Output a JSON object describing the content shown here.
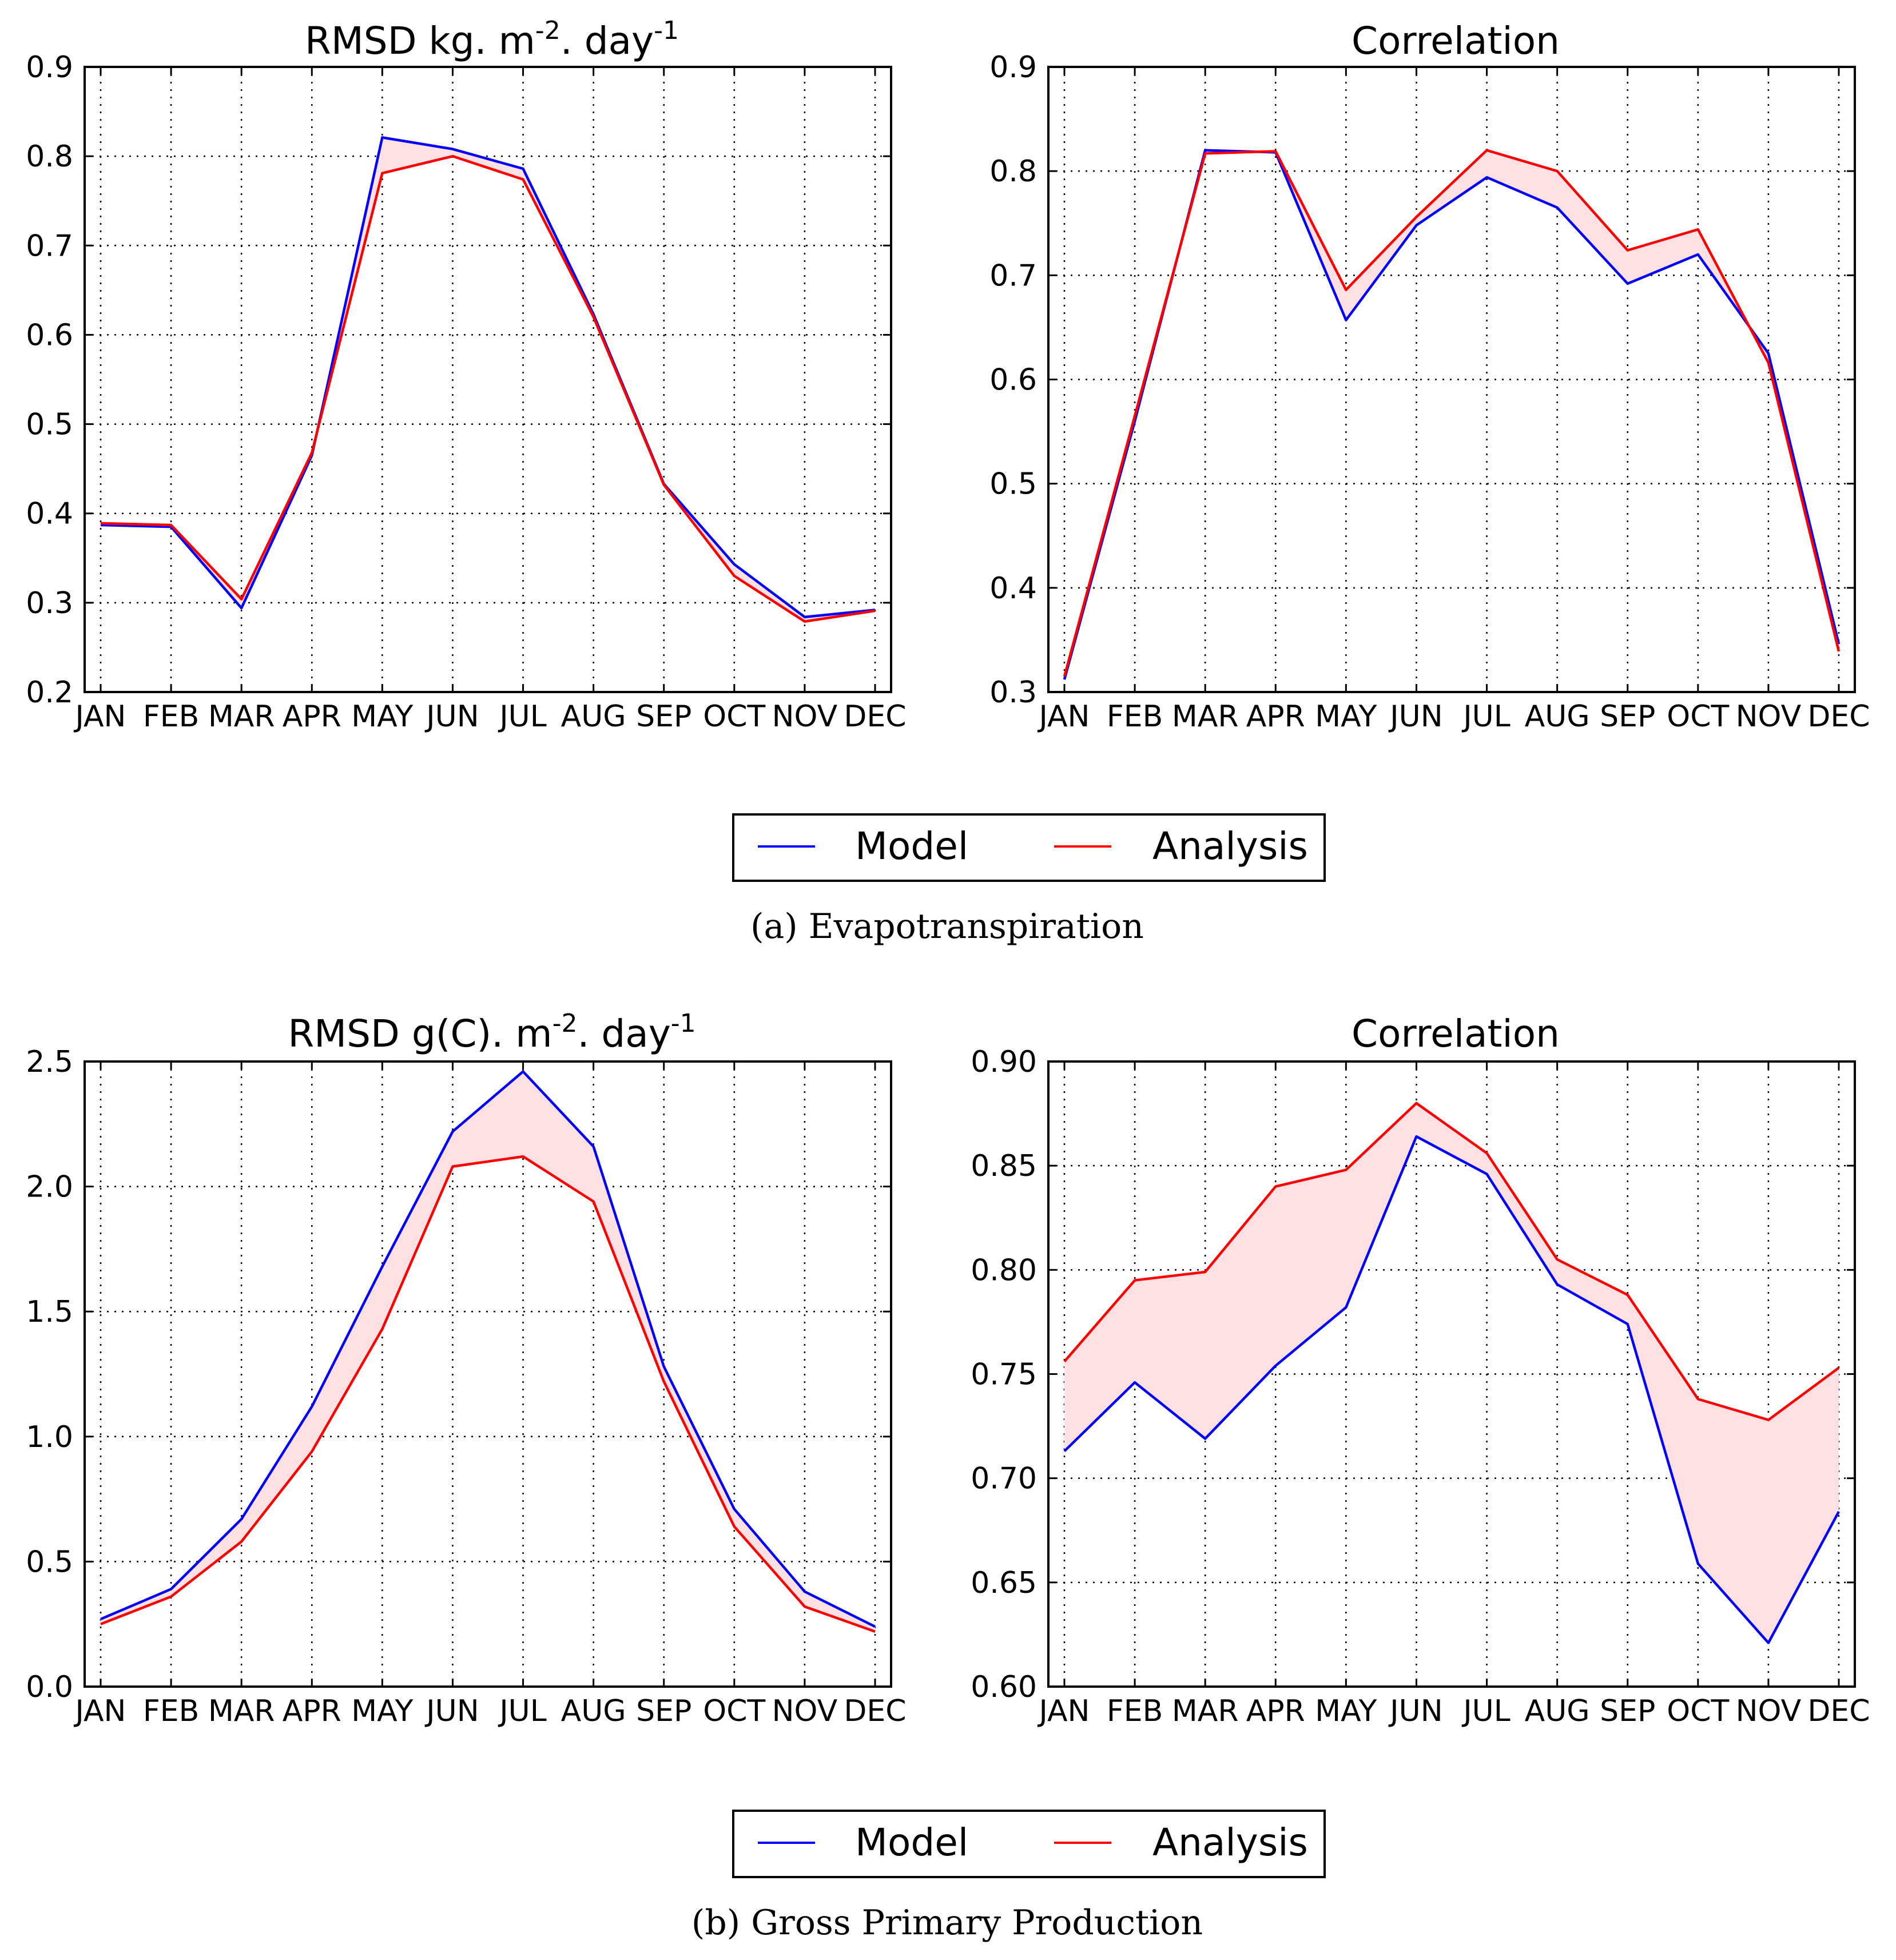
{
  "series_names": [
    "Model",
    "Analysis"
  ],
  "colors": {
    "model": "#0000ff",
    "analysis": "#ff0000",
    "fill": "#ffe0e3"
  },
  "legends": [
    {
      "model_label": "Model",
      "analysis_label": "Analysis"
    },
    {
      "model_label": "Model",
      "analysis_label": "Analysis"
    }
  ],
  "captions": {
    "a": "(a)  Evapotranspiration",
    "b": "(b)  Gross Primary Production"
  },
  "chart_data": [
    {
      "type": "line",
      "title_main": "RMSD kg. m",
      "title_sup1": "-2",
      "title_mid": ". day",
      "title_sup2": "-1",
      "categories": [
        "JAN",
        "FEB",
        "MAR",
        "APR",
        "MAY",
        "JUN",
        "JUL",
        "AUG",
        "SEP",
        "OCT",
        "NOV",
        "DEC"
      ],
      "ylim": [
        0.2,
        0.9
      ],
      "yticks": [
        0.2,
        0.3,
        0.4,
        0.5,
        0.6,
        0.7,
        0.8,
        0.9
      ],
      "ytick_labels": [
        "0.2",
        "0.3",
        "0.4",
        "0.5",
        "0.6",
        "0.7",
        "0.8",
        "0.9"
      ],
      "grid": true,
      "series": [
        {
          "name": "Model",
          "values": [
            0.387,
            0.385,
            0.294,
            0.465,
            0.821,
            0.808,
            0.786,
            0.623,
            0.433,
            0.343,
            0.284,
            0.292
          ]
        },
        {
          "name": "Analysis",
          "values": [
            0.389,
            0.387,
            0.304,
            0.468,
            0.781,
            0.8,
            0.774,
            0.62,
            0.432,
            0.33,
            0.279,
            0.291
          ]
        }
      ]
    },
    {
      "type": "line",
      "title_main": "Correlation",
      "categories": [
        "JAN",
        "FEB",
        "MAR",
        "APR",
        "MAY",
        "JUN",
        "JUL",
        "AUG",
        "SEP",
        "OCT",
        "NOV",
        "DEC"
      ],
      "ylim": [
        0.3,
        0.9
      ],
      "yticks": [
        0.3,
        0.4,
        0.5,
        0.6,
        0.7,
        0.8,
        0.9
      ],
      "ytick_labels": [
        "0.3",
        "0.4",
        "0.5",
        "0.6",
        "0.7",
        "0.8",
        "0.9"
      ],
      "grid": true,
      "series": [
        {
          "name": "Model",
          "values": [
            0.312,
            0.56,
            0.82,
            0.818,
            0.657,
            0.748,
            0.794,
            0.765,
            0.692,
            0.72,
            0.625,
            0.346
          ]
        },
        {
          "name": "Analysis",
          "values": [
            0.315,
            0.565,
            0.817,
            0.819,
            0.686,
            0.756,
            0.82,
            0.8,
            0.724,
            0.744,
            0.616,
            0.339
          ]
        }
      ]
    },
    {
      "type": "line",
      "title_main": "RMSD g(C). m",
      "title_sup1": "-2",
      "title_mid": ". day",
      "title_sup2": "-1",
      "categories": [
        "JAN",
        "FEB",
        "MAR",
        "APR",
        "MAY",
        "JUN",
        "JUL",
        "AUG",
        "SEP",
        "OCT",
        "NOV",
        "DEC"
      ],
      "ylim": [
        0.0,
        2.5
      ],
      "yticks": [
        0.0,
        0.5,
        1.0,
        1.5,
        2.0,
        2.5
      ],
      "ytick_labels": [
        "0.0",
        "0.5",
        "1.0",
        "1.5",
        "2.0",
        "2.5"
      ],
      "grid": true,
      "series": [
        {
          "name": "Model",
          "values": [
            0.27,
            0.39,
            0.67,
            1.12,
            1.68,
            2.22,
            2.46,
            2.16,
            1.28,
            0.71,
            0.38,
            0.24
          ]
        },
        {
          "name": "Analysis",
          "values": [
            0.25,
            0.36,
            0.58,
            0.94,
            1.43,
            2.08,
            2.12,
            1.94,
            1.22,
            0.64,
            0.32,
            0.22
          ]
        }
      ]
    },
    {
      "type": "line",
      "title_main": "Correlation",
      "categories": [
        "JAN",
        "FEB",
        "MAR",
        "APR",
        "MAY",
        "JUN",
        "JUL",
        "AUG",
        "SEP",
        "OCT",
        "NOV",
        "DEC"
      ],
      "ylim": [
        0.6,
        0.9
      ],
      "yticks": [
        0.6,
        0.65,
        0.7,
        0.75,
        0.8,
        0.85,
        0.9
      ],
      "ytick_labels": [
        "0.60",
        "0.65",
        "0.70",
        "0.75",
        "0.80",
        "0.85",
        "0.90"
      ],
      "grid": true,
      "series": [
        {
          "name": "Model",
          "values": [
            0.713,
            0.746,
            0.719,
            0.754,
            0.782,
            0.864,
            0.846,
            0.793,
            0.774,
            0.659,
            0.621,
            0.684
          ]
        },
        {
          "name": "Analysis",
          "values": [
            0.756,
            0.795,
            0.799,
            0.84,
            0.848,
            0.88,
            0.856,
            0.805,
            0.788,
            0.738,
            0.728,
            0.753
          ]
        }
      ]
    }
  ]
}
